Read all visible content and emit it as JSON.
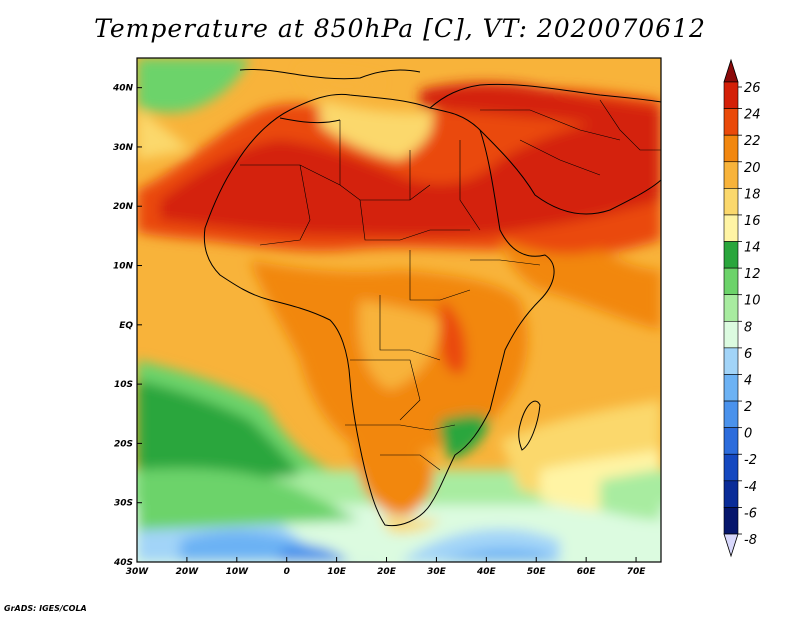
{
  "title": "Temperature at 850hPa [C], VT: 2020070612",
  "credit": "GrADS: IGES/COLA",
  "map": {
    "lon_range": [
      -30,
      75
    ],
    "lat_range": [
      -40,
      45
    ],
    "lat_labels": [
      "40N",
      "30N",
      "20N",
      "10N",
      "EQ",
      "10S",
      "20S",
      "30S",
      "40S"
    ],
    "lat_values": [
      40,
      30,
      20,
      10,
      0,
      -10,
      -20,
      -30,
      -40
    ],
    "lon_labels": [
      "30W",
      "20W",
      "10W",
      "0",
      "10E",
      "20E",
      "30E",
      "40E",
      "50E",
      "60E",
      "70E"
    ],
    "lon_values": [
      -30,
      -20,
      -10,
      0,
      10,
      20,
      30,
      40,
      50,
      60,
      70
    ]
  },
  "colorbar": {
    "labels": [
      "26",
      "24",
      "22",
      "20",
      "18",
      "16",
      "14",
      "12",
      "10",
      "8",
      "6",
      "4",
      "2",
      "0",
      "-2",
      "-4",
      "-6",
      "-8"
    ],
    "colors": [
      "#8b0a0a",
      "#d42008",
      "#ea4a0a",
      "#f2870f",
      "#f8b33a",
      "#fbd86c",
      "#fff4a4",
      "#2aa63c",
      "#6cd36a",
      "#a8eca0",
      "#dcfbe0",
      "#a2d4f8",
      "#6cb2f4",
      "#4a92ec",
      "#2c6cdc",
      "#1448c0",
      "#0a2c98",
      "#06166c",
      "#d8d8fc"
    ]
  }
}
